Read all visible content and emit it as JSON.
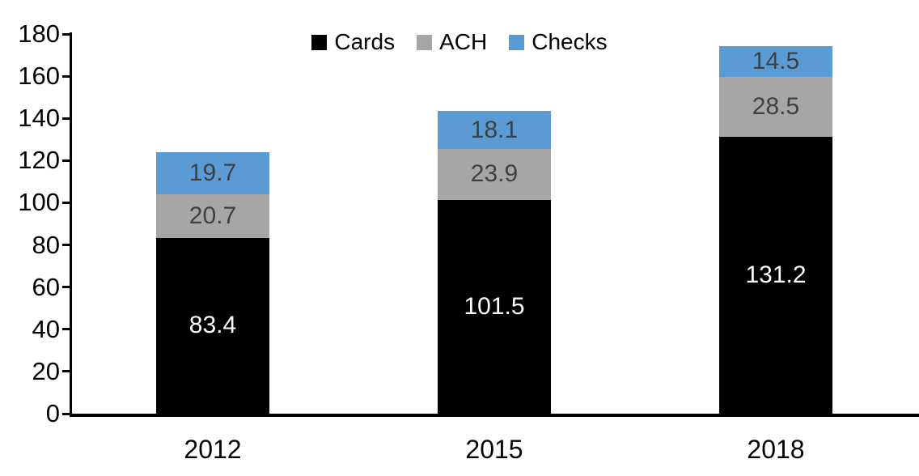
{
  "chart_data": {
    "type": "bar",
    "stacked": true,
    "title": "",
    "xlabel": "",
    "ylabel": "",
    "categories": [
      "2012",
      "2015",
      "2018"
    ],
    "series": [
      {
        "name": "Cards",
        "color": "#000000",
        "label_color": "#FFFFFF",
        "values": [
          83.4,
          101.5,
          131.2
        ]
      },
      {
        "name": "ACH",
        "color": "#A6A6A6",
        "label_color": "#404040",
        "values": [
          20.7,
          23.9,
          28.5
        ]
      },
      {
        "name": "Checks",
        "color": "#5B9BD5",
        "label_color": "#404040",
        "values": [
          19.7,
          18.1,
          14.5
        ]
      }
    ],
    "ylim": [
      0,
      180
    ],
    "yticks": [
      0,
      20,
      40,
      60,
      80,
      100,
      120,
      140,
      160,
      180
    ],
    "grid": false,
    "legend_position": "top-center",
    "legend_labels": [
      "Cards",
      "ACH",
      "Checks"
    ]
  },
  "colors": {
    "background": "#FFFFFF",
    "axis": "#000000",
    "cards": "#000000",
    "ach": "#A6A6A6",
    "checks": "#5B9BD5"
  }
}
